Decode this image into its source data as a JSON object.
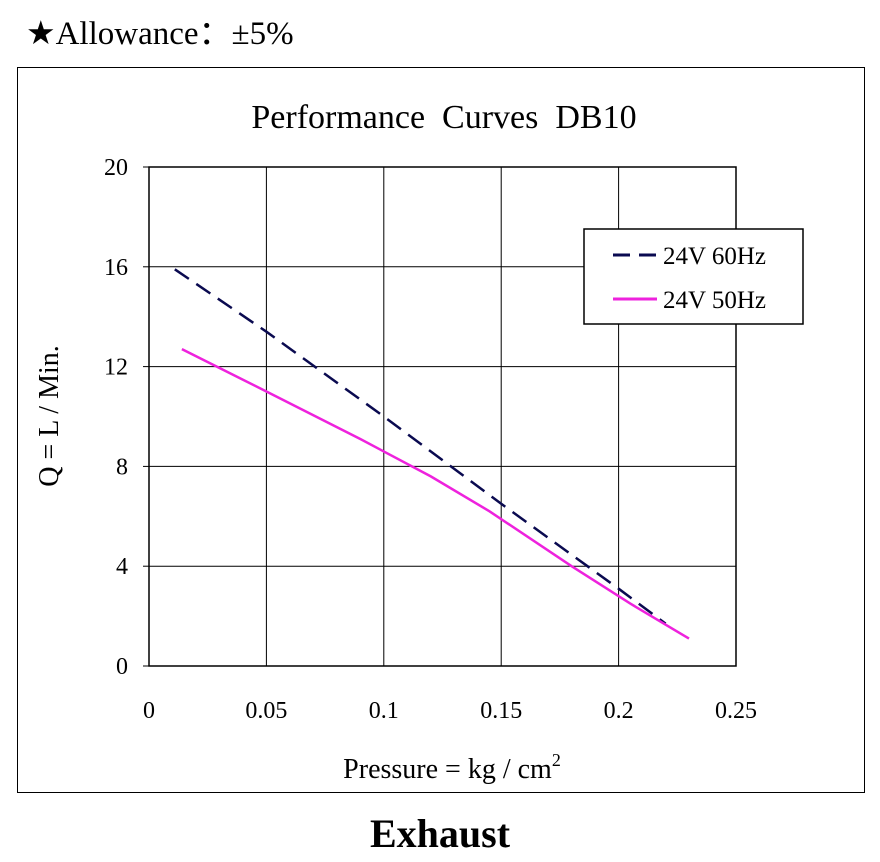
{
  "header": {
    "allowance": "★Allowance：±5%"
  },
  "footer": {
    "label": "Exhaust"
  },
  "colors": {
    "series_60hz": "#0a0a50",
    "series_50hz": "#ee22dd"
  },
  "chart_data": {
    "type": "line",
    "title": "Performance  Curves  DB10",
    "xlabel": "Pressure = kg / cm",
    "xlabel_sup": "2",
    "ylabel": "Q = L / Min.",
    "xlim": [
      0,
      0.25
    ],
    "ylim": [
      0,
      20
    ],
    "x_ticks": [
      {
        "value": 0,
        "label": "0"
      },
      {
        "value": 0.05,
        "label": "0.05"
      },
      {
        "value": 0.1,
        "label": "0.1"
      },
      {
        "value": 0.15,
        "label": "0.15"
      },
      {
        "value": 0.2,
        "label": "0.2"
      },
      {
        "value": 0.25,
        "label": "0.25"
      }
    ],
    "y_ticks": [
      {
        "value": 0,
        "label": "0"
      },
      {
        "value": 4,
        "label": "4"
      },
      {
        "value": 8,
        "label": "8"
      },
      {
        "value": 12,
        "label": "12"
      },
      {
        "value": 16,
        "label": "16"
      },
      {
        "value": 20,
        "label": "20"
      }
    ],
    "grid": true,
    "legend_position": "top-right",
    "series": [
      {
        "name": "24V 60Hz",
        "style": "dashed",
        "points": [
          [
            0.011,
            15.9
          ],
          [
            0.05,
            13.4
          ],
          [
            0.1,
            10.0
          ],
          [
            0.15,
            6.5
          ],
          [
            0.2,
            3.1
          ],
          [
            0.22,
            1.7
          ]
        ]
      },
      {
        "name": "24V 50Hz",
        "style": "solid",
        "points": [
          [
            0.014,
            12.7
          ],
          [
            0.05,
            11.0
          ],
          [
            0.09,
            9.1
          ],
          [
            0.12,
            7.6
          ],
          [
            0.145,
            6.2
          ],
          [
            0.18,
            4.0
          ],
          [
            0.205,
            2.5
          ],
          [
            0.23,
            1.1
          ]
        ]
      }
    ]
  }
}
